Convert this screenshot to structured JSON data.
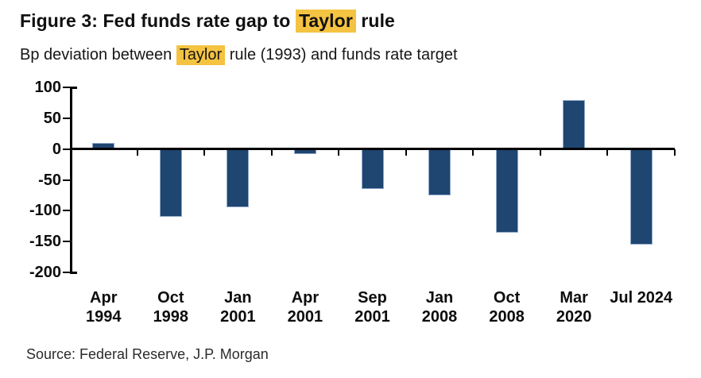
{
  "header": {
    "title_prefix": "Figure 3: Fed funds rate gap to ",
    "title_highlight": "Taylor",
    "title_suffix": " rule",
    "subtitle_prefix": "Bp deviation between ",
    "subtitle_highlight": "Taylor",
    "subtitle_suffix": " rule (1993) and funds rate target"
  },
  "chart_data": {
    "type": "bar",
    "title": "Figure 3: Fed funds rate gap to Taylor rule",
    "subtitle": "Bp deviation between Taylor rule (1993) and funds rate target",
    "unit": "bp",
    "categories": [
      "Apr 1994",
      "Oct 1998",
      "Jan 2001",
      "Apr 2001",
      "Sep 2001",
      "Jan 2008",
      "Oct 2008",
      "Mar 2020",
      "Jul 2024"
    ],
    "category_label_lines": [
      [
        "Apr",
        "1994"
      ],
      [
        "Oct",
        "1998"
      ],
      [
        "Jan",
        "2001"
      ],
      [
        "Apr",
        "2001"
      ],
      [
        "Sep",
        "2001"
      ],
      [
        "Jan",
        "2008"
      ],
      [
        "Oct",
        "2008"
      ],
      [
        "Mar",
        "2020"
      ],
      [
        "Jul 2024"
      ]
    ],
    "values": [
      10,
      -110,
      -95,
      -8,
      -65,
      -75,
      -135,
      80,
      -155
    ],
    "ylim": [
      -200,
      100
    ],
    "y_ticks": [
      100,
      50,
      0,
      -50,
      -100,
      -150,
      -200
    ],
    "grid": false,
    "legend": null,
    "bar_color": "#1f4571",
    "bar_border_color": "#90a9c9",
    "axis_color": "#000000",
    "highlight_color": "#f5c342"
  },
  "footer": {
    "source": "Source: Federal Reserve, J.P. Morgan"
  }
}
